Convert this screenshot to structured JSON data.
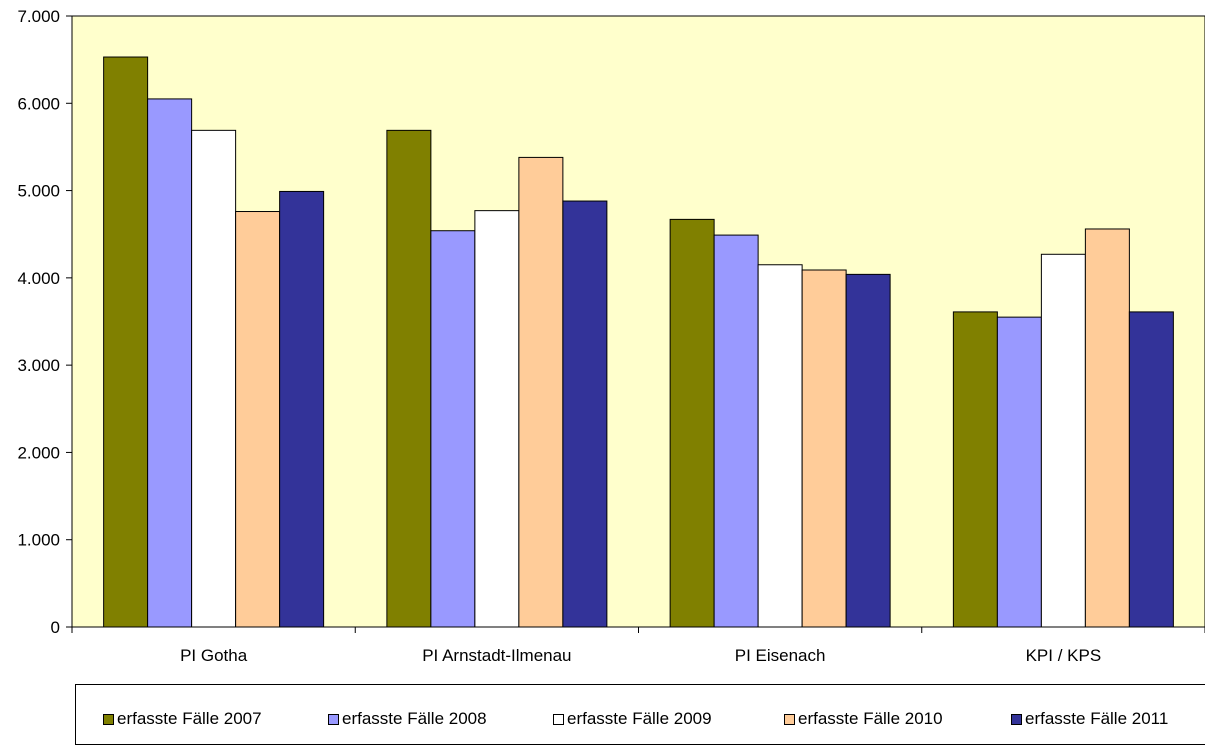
{
  "chart_data": {
    "type": "bar",
    "categories": [
      "PI Gotha",
      "PI Arnstadt-Ilmenau",
      "PI Eisenach",
      "KPI / KPS"
    ],
    "series": [
      {
        "name": "erfasste Fälle 2007",
        "color": "#808000",
        "values": [
          6530,
          5690,
          4670,
          3610
        ]
      },
      {
        "name": "erfasste Fälle 2008",
        "color": "#9999FF",
        "values": [
          6050,
          4540,
          4490,
          3550
        ]
      },
      {
        "name": "erfasste Fälle 2009",
        "color": "#FFFFFF",
        "values": [
          5690,
          4770,
          4150,
          4270
        ]
      },
      {
        "name": "erfasste Fälle 2010",
        "color": "#FFCC99",
        "values": [
          4760,
          5380,
          4090,
          4560
        ]
      },
      {
        "name": "erfasste Fälle 2011",
        "color": "#333399",
        "values": [
          4990,
          4880,
          4040,
          3610
        ]
      }
    ],
    "yticks": [
      "0",
      "1.000",
      "2.000",
      "3.000",
      "4.000",
      "5.000",
      "6.000",
      "7.000"
    ],
    "ylim": [
      0,
      7000
    ],
    "plot_background": "#FFFFCC",
    "grid": false,
    "legend_position": "bottom"
  }
}
